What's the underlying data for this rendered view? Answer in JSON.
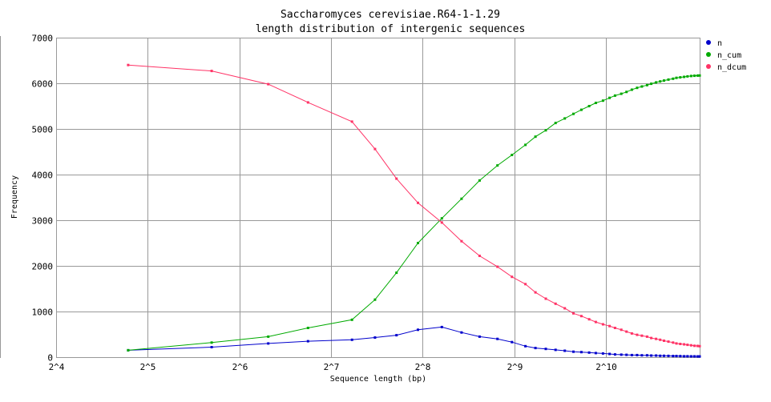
{
  "chart_data": {
    "type": "line",
    "title": "Saccharomyces cerevisiae.R64-1-1.29",
    "subtitle": "length distribution of intergenic sequences",
    "xlabel": "Sequence length (bp)",
    "ylabel": "Frequency",
    "xscale": "log2",
    "xlim": [
      16,
      2080
    ],
    "ylim": [
      0,
      7000
    ],
    "x_ticks": [
      {
        "value": 16,
        "label": "2^4"
      },
      {
        "value": 32,
        "label": "2^5"
      },
      {
        "value": 64,
        "label": "2^6"
      },
      {
        "value": 128,
        "label": "2^7"
      },
      {
        "value": 256,
        "label": "2^8"
      },
      {
        "value": 512,
        "label": "2^9"
      },
      {
        "value": 1024,
        "label": "2^10"
      }
    ],
    "y_ticks": [
      0,
      1000,
      2000,
      3000,
      4000,
      5000,
      6000,
      7000
    ],
    "grid": true,
    "legend_position": "top-right",
    "x": [
      27.6,
      51.9,
      79.6,
      107.5,
      150.0,
      178.5,
      210.0,
      247.0,
      296.0,
      343.4,
      393.6,
      450.7,
      502.8,
      556.8,
      600.7,
      649.6,
      699.3,
      750.0,
      800.6,
      850.3,
      901.6,
      948.3,
      1001.4,
      1052.1,
      1096.7,
      1149.8,
      1195.6,
      1245.8,
      1295.9,
      1343.9,
      1397.6,
      1442.7,
      1495.8,
      1542.6,
      1588.0,
      1641.9,
      1700.7,
      1744.4,
      1796.5,
      1849.4,
      1896.8,
      1950.0,
      1999.7,
      2047.1,
      2080.0
    ],
    "series": [
      {
        "name": "n",
        "color": "#0000cc",
        "values": [
          150,
          220,
          300,
          350,
          380,
          430,
          480,
          600,
          660,
          540,
          450,
          400,
          330,
          240,
          200,
          180,
          160,
          140,
          120,
          110,
          100,
          90,
          80,
          70,
          60,
          55,
          50,
          45,
          45,
          40,
          40,
          35,
          35,
          30,
          30,
          28,
          25,
          25,
          22,
          20,
          20,
          18,
          18,
          15,
          15
        ]
      },
      {
        "name": "n_cum",
        "color": "#00aa00",
        "values": [
          150,
          320,
          450,
          640,
          820,
          1260,
          1850,
          2500,
          3040,
          3470,
          3870,
          4200,
          4430,
          4650,
          4830,
          4970,
          5130,
          5230,
          5330,
          5420,
          5500,
          5570,
          5620,
          5680,
          5730,
          5770,
          5810,
          5860,
          5900,
          5930,
          5960,
          5990,
          6020,
          6040,
          6060,
          6080,
          6100,
          6120,
          6130,
          6140,
          6150,
          6160,
          6165,
          6168,
          6170
        ]
      },
      {
        "name": "n_dcum",
        "color": "#ff3366",
        "values": [
          6400,
          6270,
          5980,
          5580,
          5160,
          4560,
          3910,
          3380,
          2950,
          2540,
          2220,
          1980,
          1760,
          1600,
          1420,
          1280,
          1170,
          1070,
          960,
          900,
          830,
          770,
          720,
          680,
          640,
          600,
          560,
          520,
          490,
          470,
          450,
          420,
          400,
          380,
          360,
          340,
          320,
          300,
          290,
          280,
          270,
          260,
          250,
          245,
          240
        ]
      }
    ]
  },
  "colors": {
    "grid": "#999999",
    "axis": "#000000",
    "background": "#ffffff"
  }
}
